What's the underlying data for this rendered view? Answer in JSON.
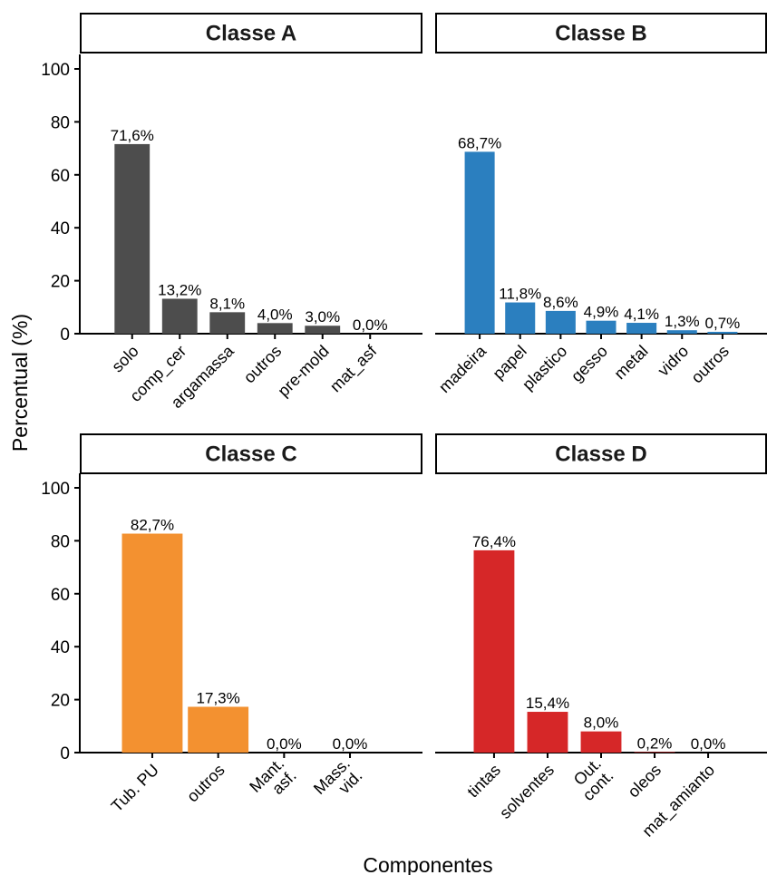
{
  "xlabel": "Componentes",
  "ylabel": "Percentual (%)",
  "chart_data": [
    {
      "type": "bar",
      "title": "Classe A",
      "color": "#4d4d4d",
      "categories": [
        "solo",
        "comp_cer",
        "argamassa",
        "outros",
        "pre-mold",
        "mat_asf"
      ],
      "values": [
        71.6,
        13.2,
        8.1,
        4.0,
        3.0,
        0.0
      ],
      "labels": [
        "71,6%",
        "13,2%",
        "8,1%",
        "4,0%",
        "3,0%",
        "0,0%"
      ],
      "ylim": [
        0,
        100
      ],
      "yticks": [
        "0",
        "20",
        "40",
        "60",
        "80",
        "100"
      ]
    },
    {
      "type": "bar",
      "title": "Classe B",
      "color": "#2b7fbf",
      "categories": [
        "madeira",
        "papel",
        "plastico",
        "gesso",
        "metal",
        "vidro",
        "outros"
      ],
      "values": [
        68.7,
        11.8,
        8.6,
        4.9,
        4.1,
        1.3,
        0.7
      ],
      "labels": [
        "68,7%",
        "11,8%",
        "8,6%",
        "4,9%",
        "4,1%",
        "1,3%",
        "0,7%"
      ],
      "ylim": [
        0,
        100
      ],
      "yticks": [
        "0",
        "20",
        "40",
        "60",
        "80",
        "100"
      ]
    },
    {
      "type": "bar",
      "title": "Classe C",
      "color": "#f39130",
      "categories": [
        "Tub. PU",
        "outros",
        "Mant.\nasf.",
        "Mass.\nvid."
      ],
      "values": [
        82.7,
        17.3,
        0.0,
        0.0
      ],
      "labels": [
        "82,7%",
        "17,3%",
        "0,0%",
        "0,0%"
      ],
      "ylim": [
        0,
        100
      ],
      "yticks": [
        "0",
        "20",
        "40",
        "60",
        "80",
        "100"
      ]
    },
    {
      "type": "bar",
      "title": "Classe D",
      "color": "#d62728",
      "categories": [
        "tintas",
        "solventes",
        "Out.\ncont.",
        "oleos",
        "mat_amianto"
      ],
      "values": [
        76.4,
        15.4,
        8.0,
        0.2,
        0.0
      ],
      "labels": [
        "76,4%",
        "15,4%",
        "8,0%",
        "0,2%",
        "0,0%"
      ],
      "ylim": [
        0,
        100
      ],
      "yticks": [
        "0",
        "20",
        "40",
        "60",
        "80",
        "100"
      ]
    }
  ]
}
